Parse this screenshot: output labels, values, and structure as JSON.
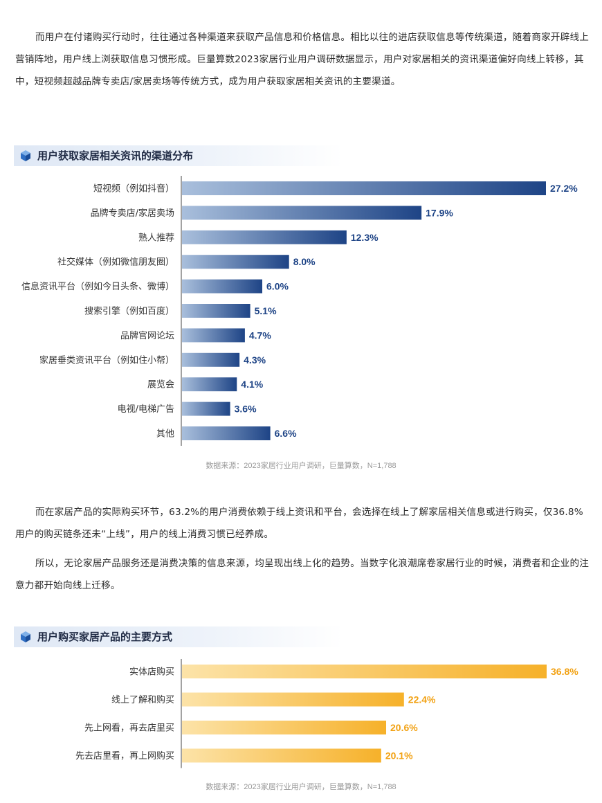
{
  "paragraphs": {
    "p1": "而用户在付诸购买行动时，往往通过各种渠道来获取产品信息和价格信息。相比以往的进店获取信息等传统渠道，随着商家开辟线上营销阵地，用户线上浏获取信息习惯形成。巨量算数2023家居行业用户调研数据显示，用户对家居相关的资讯渠道偏好向线上转移，其中，短视频超越品牌专卖店/家居卖场等传统方式，成为用户获取家居相关资讯的主要渠道。",
    "p2": "而在家居产品的实际购买环节，63.2%的用户消费依赖于线上资讯和平台，会选择在线上了解家居相关信息或进行购买，仅36.8%用户的购买链条还未“上线”，用户的线上消费习惯已经养成。",
    "p3": "所以，无论家居产品服务还是消费决策的信息来源，均呈现出线上化的趋势。当数字化浪潮席卷家居行业的时候，消费者和企业的注意力都开始向线上迁移。"
  },
  "section_icon": "cube-icon",
  "colors": {
    "chart1_bar_start": "#a9bfdc",
    "chart1_bar_end": "#1e4486",
    "chart1_label": "#1e4486",
    "chart2_bar_start": "#fce3a8",
    "chart2_bar_end": "#f6b12a",
    "chart2_label": "#f2a112",
    "axis": "#444444"
  },
  "chart_data": [
    {
      "type": "bar",
      "orientation": "horizontal",
      "title": "用户获取家居相关资讯的渠道分布",
      "categories": [
        "短视频（例如抖音）",
        "品牌专卖店/家居卖场",
        "熟人推荐",
        "社交媒体（例如微信朋友圈）",
        "信息资讯平台（例如今日头条、微博）",
        "搜索引擎（例如百度）",
        "品牌官网论坛",
        "家居垂类资讯平台（例如住小帮）",
        "展览会",
        "电视/电梯广告",
        "其他"
      ],
      "values": [
        27.2,
        17.9,
        12.3,
        8.0,
        6.0,
        5.1,
        4.7,
        4.3,
        4.1,
        3.6,
        6.6
      ],
      "value_labels": [
        "27.2%",
        "17.9%",
        "12.3%",
        "8.0%",
        "6.0%",
        "5.1%",
        "4.7%",
        "4.3%",
        "4.1%",
        "3.6%",
        "6.6%"
      ],
      "source": "数据来源：2023家居行业用户调研，巨量算数，N=1,788"
    },
    {
      "type": "bar",
      "orientation": "horizontal",
      "title": "用户购买家居产品的主要方式",
      "categories": [
        "实体店购买",
        "线上了解和购买",
        "先上网看，再去店里买",
        "先去店里看，再上网购买"
      ],
      "values": [
        36.8,
        22.4,
        20.6,
        20.1
      ],
      "value_labels": [
        "36.8%",
        "22.4%",
        "20.6%",
        "20.1%"
      ],
      "source": "数据来源：2023家居行业用户调研，巨量算数，N=1,788"
    }
  ]
}
